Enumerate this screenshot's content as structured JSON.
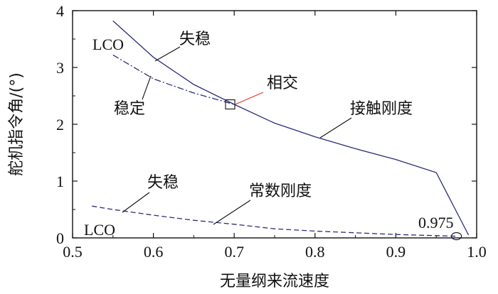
{
  "chart_data": {
    "type": "line",
    "xlabel": "无量纲来流速度",
    "ylabel": "舵机指令角/(°)",
    "xlim": [
      0.5,
      1.0
    ],
    "ylim": [
      0,
      4
    ],
    "x_ticks": [
      "0.5",
      "0.6",
      "0.7",
      "0.8",
      "0.9",
      "1.0"
    ],
    "y_ticks": [
      "0",
      "1",
      "2",
      "3",
      "4"
    ],
    "grid": false,
    "legend": "none",
    "series": [
      {
        "line_style": "solid",
        "color": "#2b2b7a",
        "x": [
          0.55,
          0.6,
          0.65,
          0.7,
          0.75,
          0.8,
          0.85,
          0.9,
          0.95,
          0.99
        ],
        "y": [
          3.82,
          3.18,
          2.7,
          2.35,
          2.02,
          1.78,
          1.57,
          1.38,
          1.15,
          0.05
        ]
      },
      {
        "line_style": "dash-dot",
        "color": "#2b2b7a",
        "x": [
          0.55,
          0.6,
          0.65,
          0.7
        ],
        "y": [
          3.22,
          2.8,
          2.55,
          2.35
        ]
      },
      {
        "line_style": "dashed",
        "color": "#2b2b7a",
        "x": [
          0.524,
          0.55,
          0.6,
          0.65,
          0.7,
          0.75,
          0.8,
          0.85,
          0.9,
          0.95,
          0.975
        ],
        "y": [
          0.56,
          0.5,
          0.4,
          0.31,
          0.24,
          0.16,
          0.12,
          0.09,
          0.06,
          0.04,
          0.03
        ]
      }
    ],
    "annotations": [
      {
        "key": "lco_upper",
        "text": "LCO"
      },
      {
        "key": "instability_upper",
        "text": "失稳"
      },
      {
        "key": "stable",
        "text": "稳定"
      },
      {
        "key": "intersection",
        "text": "相交",
        "x": 0.695,
        "y": 2.35
      },
      {
        "key": "contact_stiffness",
        "text": "接触刚度"
      },
      {
        "key": "instability_lower",
        "text": "失稳"
      },
      {
        "key": "constant_stiffness",
        "text": "常数刚度"
      },
      {
        "key": "lco_lower",
        "text": "LCO"
      },
      {
        "key": "critical_value",
        "text": "0.975",
        "x": 0.975,
        "y": 0.03
      }
    ],
    "colors": {
      "series": "#2b2b7a",
      "highlight": "#e03030",
      "axis": "#111111"
    }
  }
}
